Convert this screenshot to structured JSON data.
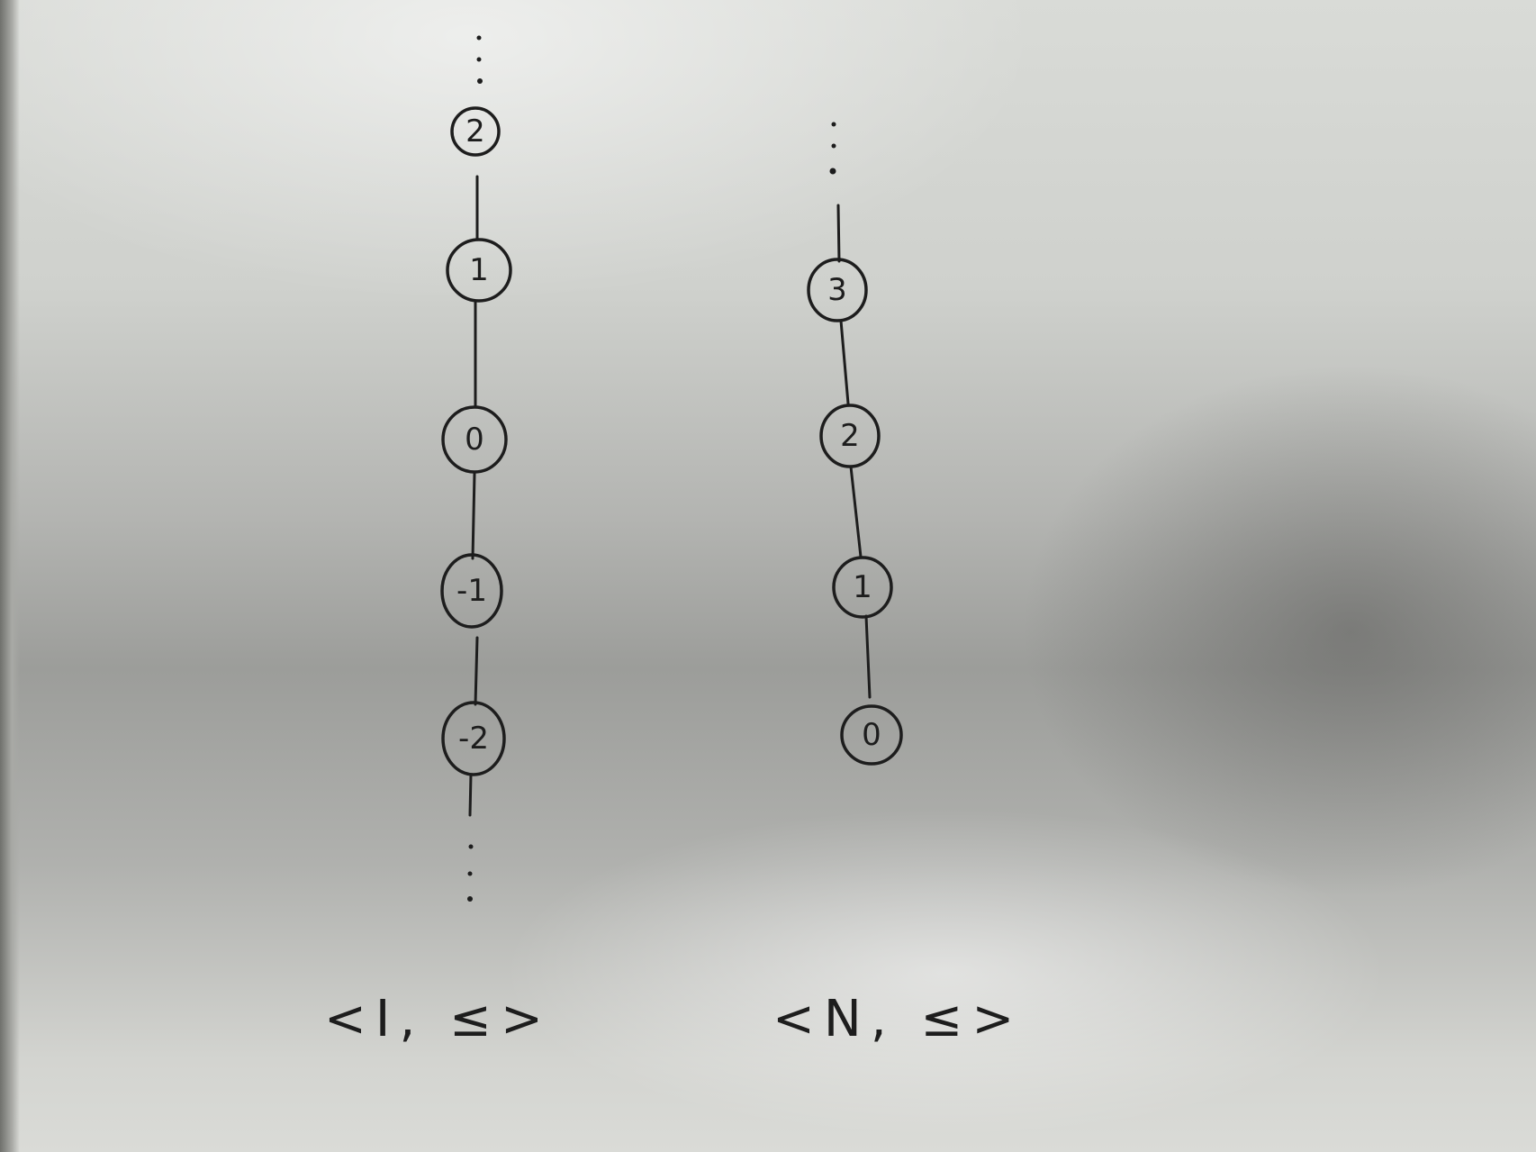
{
  "diagrams": [
    {
      "id": "integers",
      "caption": "<I, ≤>",
      "nodes": [
        "2",
        "1",
        "0",
        "-1",
        "-2"
      ],
      "continues_above": true,
      "continues_below": true
    },
    {
      "id": "naturals",
      "caption": "<N, ≤>",
      "nodes": [
        "3",
        "2",
        "1",
        "0"
      ],
      "continues_above": true,
      "continues_below": false
    }
  ],
  "colors": {
    "ink": "#1d1d1d",
    "paper": "#d2d3cf"
  }
}
